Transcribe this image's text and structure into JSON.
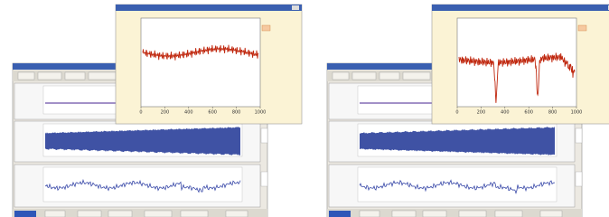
{
  "windows": [
    {
      "plot": {
        "xlim": [
          0,
          1000
        ],
        "xticks": [
          0,
          200,
          400,
          600,
          800,
          1000
        ]
      }
    },
    {
      "plot": {
        "xlim": [
          0,
          1000
        ],
        "xticks": [
          0,
          200,
          400,
          600,
          800,
          1000
        ]
      }
    }
  ]
}
